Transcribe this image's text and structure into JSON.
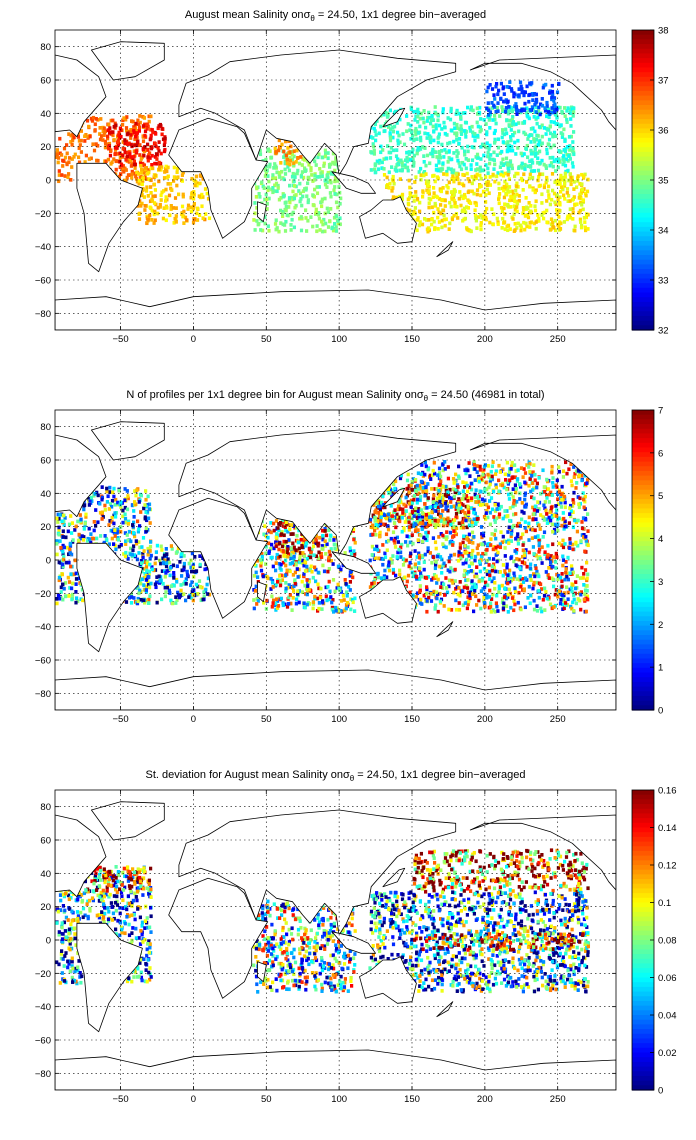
{
  "chart_data": [
    {
      "type": "heatmap",
      "title": "August mean Salinity on",
      "title_symbol": "σ",
      "title_subscript": "θ",
      "title_rest": " = 24.50, 1x1 degree bin−averaged",
      "xticks": [
        "−50",
        "0",
        "50",
        "100",
        "150",
        "200",
        "250"
      ],
      "yticks": [
        "80",
        "60",
        "40",
        "20",
        "0",
        "−20",
        "−40",
        "−60",
        "−80"
      ],
      "xlim": [
        -95,
        290
      ],
      "ylim": [
        -90,
        90
      ],
      "grid": true,
      "colorbar": {
        "ticks": [
          "38",
          "37",
          "36",
          "35",
          "34",
          "33",
          "32"
        ],
        "min": 32,
        "max": 38,
        "position": "right"
      },
      "regions": [
        {
          "lon": [
            -95,
            -30
          ],
          "lat": [
            0,
            40
          ],
          "value": 36.6
        },
        {
          "lon": [
            -60,
            -20
          ],
          "lat": [
            10,
            35
          ],
          "value": 37.3
        },
        {
          "lon": [
            -40,
            10
          ],
          "lat": [
            -25,
            10
          ],
          "value": 36.1
        },
        {
          "lon": [
            40,
            100
          ],
          "lat": [
            -30,
            20
          ],
          "value": 35.0
        },
        {
          "lon": [
            55,
            75
          ],
          "lat": [
            10,
            25
          ],
          "value": 36.4
        },
        {
          "lon": [
            120,
            260
          ],
          "lat": [
            5,
            45
          ],
          "value": 34.6
        },
        {
          "lon": [
            200,
            250
          ],
          "lat": [
            40,
            60
          ],
          "value": 33.2
        },
        {
          "lon": [
            130,
            270
          ],
          "lat": [
            -30,
            5
          ],
          "value": 35.8
        }
      ]
    },
    {
      "type": "heatmap",
      "title": "N of profiles per 1x1 degree bin for August mean Salinity on",
      "title_symbol": "σ",
      "title_subscript": "θ",
      "title_rest": " = 24.50 (46981 in total)",
      "xticks": [
        "−50",
        "0",
        "50",
        "100",
        "150",
        "200",
        "250"
      ],
      "yticks": [
        "80",
        "60",
        "40",
        "20",
        "0",
        "−20",
        "−40",
        "−60",
        "−80"
      ],
      "xlim": [
        -95,
        290
      ],
      "ylim": [
        -90,
        90
      ],
      "grid": true,
      "colorbar": {
        "ticks": [
          "7",
          "6",
          "5",
          "4",
          "3",
          "2",
          "1",
          "0"
        ],
        "min": 0,
        "max": 7,
        "position": "right"
      },
      "regions": [
        {
          "lon": [
            -95,
            -30
          ],
          "lat": [
            -25,
            45
          ],
          "value": 2.5
        },
        {
          "lon": [
            -40,
            10
          ],
          "lat": [
            -25,
            10
          ],
          "value": 2.0
        },
        {
          "lon": [
            40,
            110
          ],
          "lat": [
            -30,
            25
          ],
          "value": 3.5
        },
        {
          "lon": [
            55,
            90
          ],
          "lat": [
            0,
            25
          ],
          "value": 5.5
        },
        {
          "lon": [
            120,
            190
          ],
          "lat": [
            20,
            45
          ],
          "value": 6.2
        },
        {
          "lon": [
            120,
            270
          ],
          "lat": [
            -30,
            60
          ],
          "value": 3.5
        }
      ]
    },
    {
      "type": "heatmap",
      "title": "St. deviation for August mean Salinity on",
      "title_symbol": "σ",
      "title_subscript": "θ",
      "title_rest": " = 24.50, 1x1 degree bin−averaged",
      "xticks": [
        "−50",
        "0",
        "50",
        "100",
        "150",
        "200",
        "250"
      ],
      "yticks": [
        "80",
        "60",
        "40",
        "20",
        "0",
        "−20",
        "−40",
        "−60",
        "−80"
      ],
      "xlim": [
        -95,
        290
      ],
      "ylim": [
        -90,
        90
      ],
      "grid": true,
      "colorbar": {
        "ticks": [
          "0.16",
          "0.14",
          "0.12",
          "0.1",
          "0.08",
          "0.06",
          "0.04",
          "0.02",
          "0"
        ],
        "min": 0,
        "max": 0.16,
        "position": "right"
      },
      "regions": [
        {
          "lon": [
            -95,
            -30
          ],
          "lat": [
            -25,
            45
          ],
          "value": 0.05
        },
        {
          "lon": [
            -75,
            -30
          ],
          "lat": [
            30,
            45
          ],
          "value": 0.14
        },
        {
          "lon": [
            40,
            110
          ],
          "lat": [
            -30,
            25
          ],
          "value": 0.07
        },
        {
          "lon": [
            150,
            270
          ],
          "lat": [
            30,
            55
          ],
          "value": 0.13
        },
        {
          "lon": [
            120,
            270
          ],
          "lat": [
            -30,
            30
          ],
          "value": 0.05
        },
        {
          "lon": [
            150,
            270
          ],
          "lat": [
            -5,
            5
          ],
          "value": 0.12
        }
      ]
    }
  ]
}
